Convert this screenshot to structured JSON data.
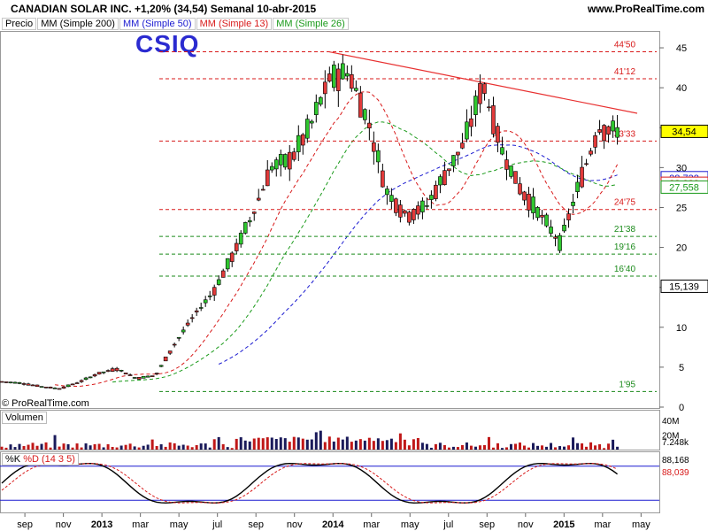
{
  "header": {
    "title": "CANADIAN SOLAR INC.    +1,20% (34,54)    Semanal    10-abr-2015",
    "site": "www.ProRealTime.com"
  },
  "legend": {
    "items": [
      "Precio",
      "MM (Simple 200)",
      "MM (Simple 50)",
      "MM (Simple 13)",
      "MM (Simple 26)"
    ],
    "colors": [
      "#000000",
      "#000000",
      "#1a1ad0",
      "#d81a1a",
      "#1a9a1a"
    ]
  },
  "copyright": "© ProRealTime.com",
  "ticker_label": "CSIQ",
  "volume_pane": {
    "title": "Volumen",
    "labels": [
      "40M",
      "20M",
      "7.248k"
    ]
  },
  "stoch_pane": {
    "title_k": "%K",
    "title_d": "%D (14 3 5)",
    "labels": [
      "88,168",
      "88,039"
    ]
  },
  "chart_data": [
    {
      "type": "candlestick",
      "title": "CANADIAN SOLAR INC.",
      "yticks": [
        0,
        5,
        10,
        15,
        20,
        25,
        30,
        35,
        40,
        45
      ],
      "ylim": [
        0,
        47
      ],
      "x_labels": [
        "sep",
        "nov",
        "2013",
        "mar",
        "may",
        "jul",
        "sep",
        "nov",
        "2014",
        "mar",
        "may",
        "jul",
        "sep",
        "nov",
        "2015",
        "mar",
        "may"
      ],
      "close_path": [
        [
          "2012-08",
          3.2
        ],
        [
          "2012-09",
          3.0
        ],
        [
          "2012-10",
          2.6
        ],
        [
          "2012-11",
          2.3
        ],
        [
          "2012-12",
          3.1
        ],
        [
          "2013-01",
          4.2
        ],
        [
          "2013-02",
          4.8
        ],
        [
          "2013-03",
          3.6
        ],
        [
          "2013-04",
          4.0
        ],
        [
          "2013-05",
          8.0
        ],
        [
          "2013-06",
          11.5
        ],
        [
          "2013-07",
          14.5
        ],
        [
          "2013-08",
          19.0
        ],
        [
          "2013-09",
          24.0
        ],
        [
          "2013-10",
          30.0
        ],
        [
          "2013-11",
          31.0
        ],
        [
          "2013-12",
          35.0
        ],
        [
          "2014-01",
          41.0
        ],
        [
          "2014-02",
          42.0
        ],
        [
          "2014-03",
          36.0
        ],
        [
          "2014-04",
          27.0
        ],
        [
          "2014-05",
          24.0
        ],
        [
          "2014-06",
          25.0
        ],
        [
          "2014-07",
          29.0
        ],
        [
          "2014-08",
          33.0
        ],
        [
          "2014-09",
          40.5
        ],
        [
          "2014-10",
          32.0
        ],
        [
          "2014-11",
          27.0
        ],
        [
          "2014-12",
          24.0
        ],
        [
          "2015-01",
          20.5
        ],
        [
          "2015-02",
          28.0
        ],
        [
          "2015-03",
          35.0
        ],
        [
          "2015-04",
          34.54
        ]
      ],
      "last_price": "34,54",
      "moving_averages": [
        {
          "name": "MM (Simple 200)",
          "color": "#000000",
          "style": "dotted",
          "last": "15,139"
        },
        {
          "name": "MM (Simple 50)",
          "color": "#1a1ad0",
          "style": "dashed",
          "last": "28,732"
        },
        {
          "name": "MM (Simple 13)",
          "color": "#d81a1a",
          "style": "dashed",
          "last": "28,032"
        },
        {
          "name": "MM (Simple 26)",
          "color": "#1a9a1a",
          "style": "dashed",
          "last": "27,558"
        }
      ],
      "levels": [
        {
          "label": "44'50",
          "value": 44.5,
          "color": "#d81a1a"
        },
        {
          "label": "41'12",
          "value": 41.12,
          "color": "#d81a1a"
        },
        {
          "label": "33'33",
          "value": 33.33,
          "color": "#d81a1a"
        },
        {
          "label": "24'75",
          "value": 24.75,
          "color": "#d81a1a"
        },
        {
          "label": "21'38",
          "value": 21.38,
          "color": "#1a8a1a"
        },
        {
          "label": "19'16",
          "value": 19.16,
          "color": "#1a8a1a"
        },
        {
          "label": "16'40",
          "value": 16.4,
          "color": "#1a8a1a"
        },
        {
          "label": "1'95",
          "value": 1.95,
          "color": "#1a8a1a"
        }
      ],
      "trendline": {
        "from": [
          "2014-01",
          44.5
        ],
        "to": [
          "2015-05",
          36.8
        ],
        "color": "#e83030"
      }
    }
  ]
}
